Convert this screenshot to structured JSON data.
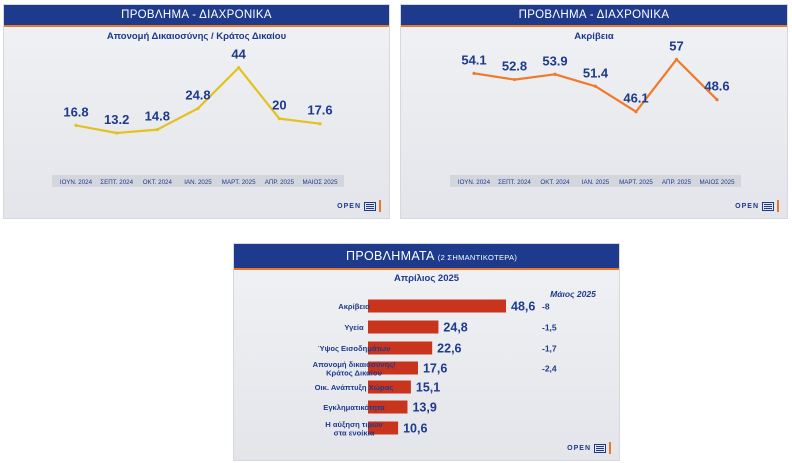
{
  "panels": {
    "left": {
      "header": "ΠΡΟΒΛΗΜΑ - ΔΙΑΧΡΟΝΙΚΑ",
      "subtitle": "Απονομή Δικαιοσύνης / Κράτος Δικαίου",
      "logo": "OPEN"
    },
    "right": {
      "header": "ΠΡΟΒΛΗΜΑ - ΔΙΑΧΡΟΝΙΚΑ",
      "subtitle": "Ακρίβεια",
      "logo": "OPEN"
    },
    "bottom": {
      "header_main": "ΠΡΟΒΛΗΜΑΤΑ",
      "header_small": "(2 ΣΗΜΑΝΤΙΚΟΤΕΡΑ)",
      "subtitle": "Απρίλιος 2025",
      "change_header": "Μάιος 2025",
      "logo": "OPEN"
    }
  },
  "chart_data": [
    {
      "type": "line",
      "title": "Απονομή Δικαιοσύνης / Κράτος Δικαίου",
      "categories": [
        "ΙΟΥΝ. 2024",
        "ΣΕΠΤ. 2024",
        "ΟΚΤ. 2024",
        "ΙΑΝ. 2025",
        "ΜΑΡΤ. 2025",
        "ΑΠΡ. 2025",
        "ΜΑΙΟΣ 2025"
      ],
      "values": [
        16.8,
        13.2,
        14.8,
        24.8,
        44,
        20,
        17.6
      ],
      "value_labels": [
        "16.8",
        "13.2",
        "14.8",
        "24.8",
        "44",
        "20",
        "17.6"
      ],
      "color": "#e2c21f",
      "ylim": [
        0,
        50
      ]
    },
    {
      "type": "line",
      "title": "Ακρίβεια",
      "categories": [
        "ΙΟΥΝ. 2024",
        "ΣΕΠΤ. 2024",
        "ΟΚΤ. 2024",
        "ΙΑΝ. 2025",
        "ΜΑΡΤ. 2025",
        "ΑΠΡ. 2025",
        "ΜΑΙΟΣ 2025"
      ],
      "values": [
        54.1,
        52.8,
        53.9,
        51.4,
        46.1,
        57,
        48.6
      ],
      "value_labels": [
        "54.1",
        "52.8",
        "53.9",
        "51.4",
        "46.1",
        "57",
        "48.6"
      ],
      "color": "#f07a2a",
      "ylim": [
        35,
        60
      ]
    },
    {
      "type": "bar",
      "orientation": "horizontal",
      "title": "Απρίλιος 2025",
      "categories": [
        "Ακρίβεια",
        "Υγεία",
        "Ύψος Εισοδημάτων",
        "Απονομή δικαιοσύνης/ Κράτος Δικαίου",
        "Οικ. Ανάπτυξη Χώρας",
        "Εγκληματικότητα",
        "Η αύξηση τιμών στα ενοίκια"
      ],
      "category_lines": [
        [
          "Ακρίβεια"
        ],
        [
          "Υγεία"
        ],
        [
          "Ύψος Εισοδημάτων"
        ],
        [
          "Απονομή δικαιοσύνης/",
          "Κράτος Δικαίου"
        ],
        [
          "Οικ. Ανάπτυξη Χώρας"
        ],
        [
          "Εγκληματικότητα"
        ],
        [
          "Η αύξηση τιμών",
          "στα ενοίκια"
        ]
      ],
      "values": [
        48.6,
        24.8,
        22.6,
        17.6,
        15.1,
        13.9,
        10.6
      ],
      "value_labels": [
        "48,6",
        "24,8",
        "22,6",
        "17,6",
        "15,1",
        "13,9",
        "10,6"
      ],
      "change_labels": [
        "-8",
        "-1,5",
        "-1,7",
        "-2,4",
        "",
        "",
        ""
      ],
      "change_header": "Μάιος 2025",
      "color": "#c9341c",
      "xlim": [
        0,
        50
      ]
    }
  ]
}
